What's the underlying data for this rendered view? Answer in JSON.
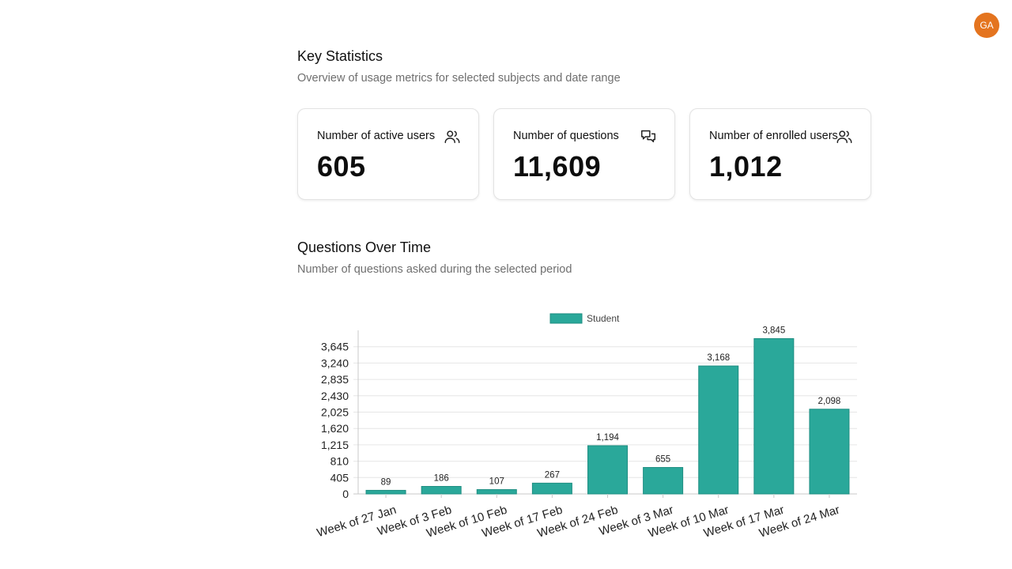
{
  "user": {
    "initials": "GA"
  },
  "key_stats": {
    "title": "Key Statistics",
    "subtitle": "Overview of usage metrics for selected subjects and date range",
    "cards": [
      {
        "label": "Number of active users",
        "value": "605",
        "icon": "users-icon"
      },
      {
        "label": "Number of questions",
        "value": "11,609",
        "icon": "chat-bubbles-icon"
      },
      {
        "label": "Number of enrolled users",
        "value": "1,012",
        "icon": "users-icon"
      }
    ]
  },
  "questions_over_time": {
    "title": "Questions Over Time",
    "subtitle": "Number of questions asked during the selected period"
  },
  "colors": {
    "bar": "#2aa89a",
    "avatar": "#e4741f"
  },
  "chart_data": {
    "type": "bar",
    "categories": [
      "Week of 27 Jan",
      "Week of 3 Feb",
      "Week of 10 Feb",
      "Week of 17 Feb",
      "Week of 24 Feb",
      "Week of 3 Mar",
      "Week of 10 Mar",
      "Week of 17 Mar",
      "Week of 24 Mar"
    ],
    "series": [
      {
        "name": "Student",
        "values": [
          89,
          186,
          107,
          267,
          1194,
          655,
          3168,
          3845,
          2098
        ]
      }
    ],
    "data_labels": [
      "89",
      "186",
      "107",
      "267",
      "1,194",
      "655",
      "3,168",
      "3,845",
      "2,098"
    ],
    "yticks": [
      0,
      405,
      810,
      1215,
      1620,
      2025,
      2430,
      2835,
      3240,
      3645
    ],
    "ytick_labels": [
      "0",
      "405",
      "810",
      "1,215",
      "1,620",
      "2,025",
      "2,430",
      "2,835",
      "3,240",
      "3,645"
    ],
    "ylim": [
      0,
      4050
    ],
    "legend_position": "top-center",
    "grid": true
  }
}
